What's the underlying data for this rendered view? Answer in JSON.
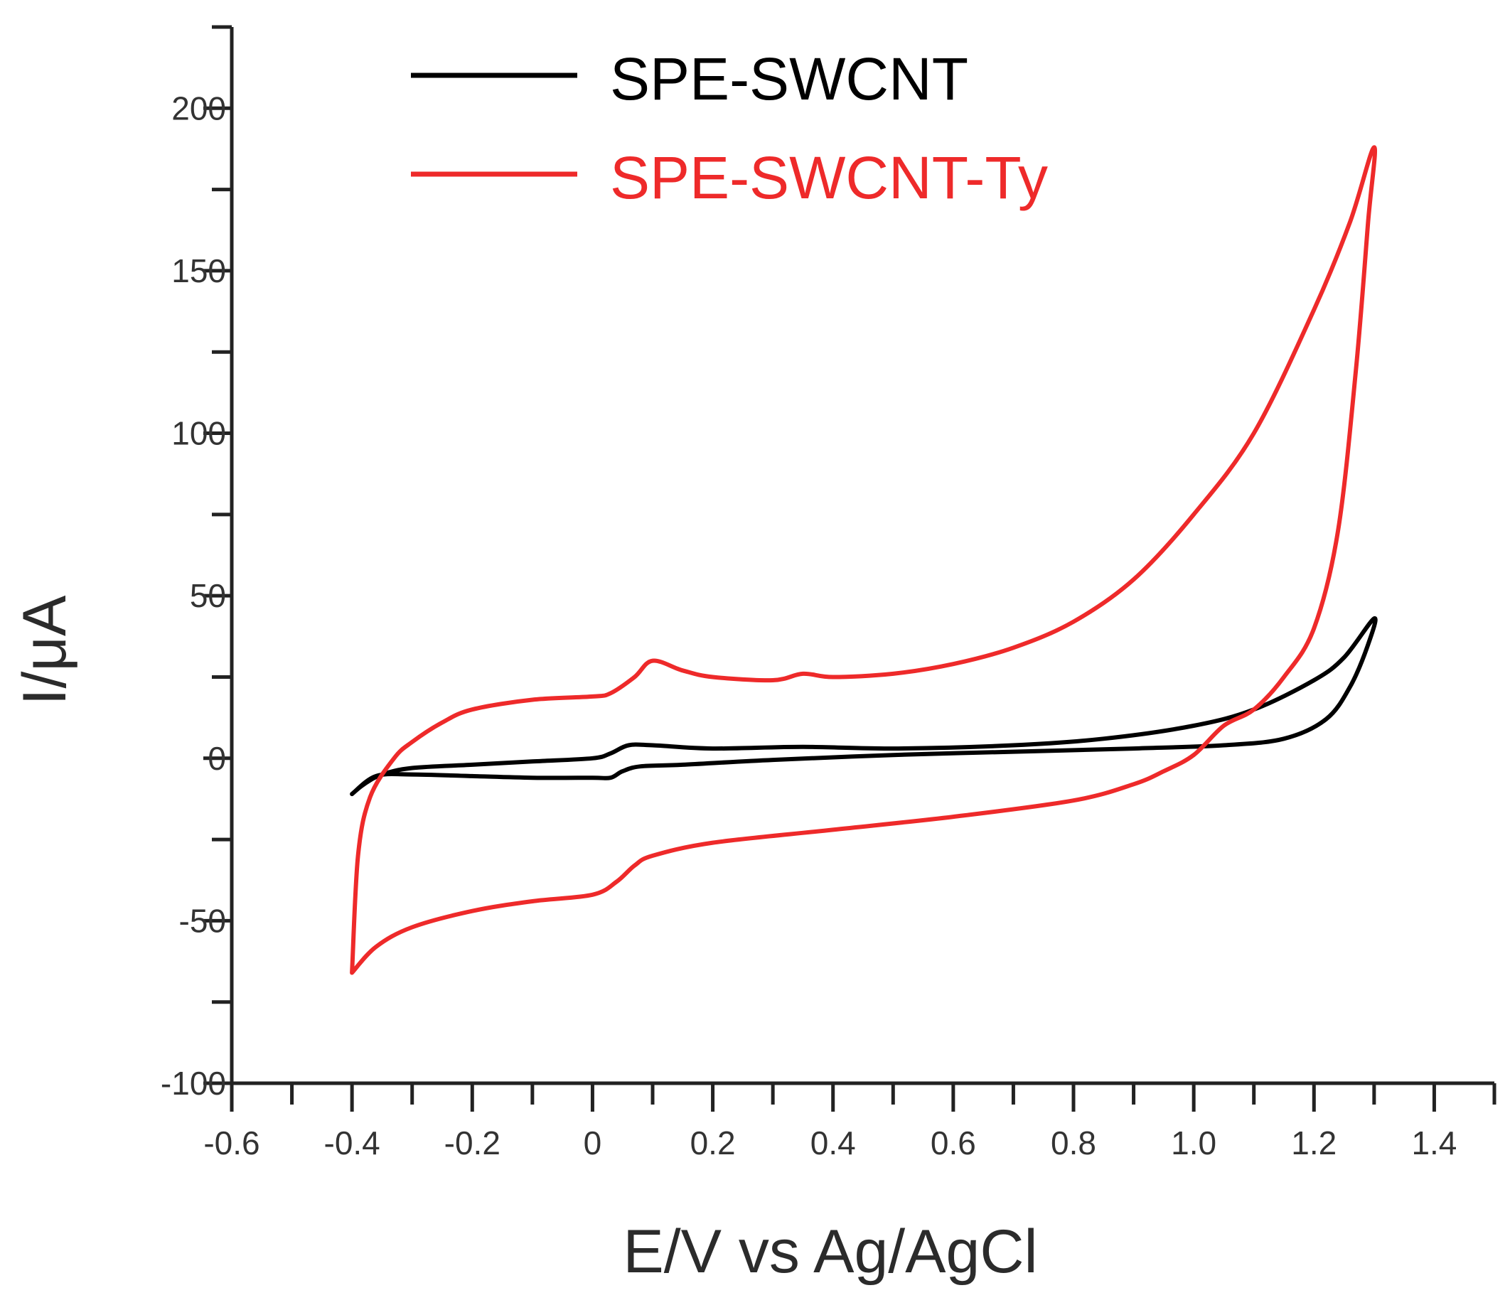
{
  "chart_data": {
    "type": "line",
    "title": "",
    "xlabel": "E/V vs Ag/AgCl",
    "ylabel": "I/μA",
    "xlim": [
      -0.6,
      1.5
    ],
    "ylim": [
      -100,
      225
    ],
    "x_ticks": [
      -0.6,
      -0.4,
      -0.2,
      0,
      0.2,
      0.4,
      0.6,
      0.8,
      1.0,
      1.2,
      1.4
    ],
    "x_tick_labels": [
      "-0.6",
      "-0.4",
      "-0.2",
      "0",
      "0.2",
      "0.4",
      "0.6",
      "0.8",
      "1.0",
      "1.2",
      "1.4"
    ],
    "x_minor_step": 0.1,
    "y_ticks": [
      -100,
      -50,
      0,
      50,
      100,
      150,
      200
    ],
    "y_tick_labels": [
      "-100",
      "-50",
      "0",
      "50",
      "100",
      "150",
      "200"
    ],
    "y_minor_step": 25,
    "grid": false,
    "legend_position": "top-center",
    "series": [
      {
        "name": "SPE-SWCNT",
        "color": "#000000",
        "points": [
          [
            -0.4,
            -11
          ],
          [
            -0.38,
            -8
          ],
          [
            -0.35,
            -5
          ],
          [
            -0.3,
            -3
          ],
          [
            -0.2,
            -2
          ],
          [
            -0.1,
            -1
          ],
          [
            0.0,
            0
          ],
          [
            0.03,
            1.5
          ],
          [
            0.06,
            4
          ],
          [
            0.1,
            4
          ],
          [
            0.2,
            3
          ],
          [
            0.35,
            3.5
          ],
          [
            0.5,
            3
          ],
          [
            0.7,
            4
          ],
          [
            0.85,
            6
          ],
          [
            1.0,
            10
          ],
          [
            1.1,
            15
          ],
          [
            1.2,
            24
          ],
          [
            1.25,
            31
          ],
          [
            1.3,
            43
          ],
          [
            1.29,
            35
          ],
          [
            1.26,
            22
          ],
          [
            1.22,
            12
          ],
          [
            1.15,
            6
          ],
          [
            1.05,
            4
          ],
          [
            0.9,
            3
          ],
          [
            0.7,
            2
          ],
          [
            0.5,
            1
          ],
          [
            0.3,
            -0.5
          ],
          [
            0.15,
            -2
          ],
          [
            0.08,
            -2.5
          ],
          [
            0.05,
            -4
          ],
          [
            0.03,
            -6
          ],
          [
            0.0,
            -6
          ],
          [
            -0.1,
            -6
          ],
          [
            -0.2,
            -5.5
          ],
          [
            -0.3,
            -5
          ],
          [
            -0.36,
            -5.5
          ],
          [
            -0.4,
            -11
          ]
        ]
      },
      {
        "name": "SPE-SWCNT-Ty",
        "color": "#ee2a2a",
        "points": [
          [
            -0.4,
            -66
          ],
          [
            -0.39,
            -30
          ],
          [
            -0.37,
            -12
          ],
          [
            -0.33,
            0
          ],
          [
            -0.3,
            5
          ],
          [
            -0.25,
            11
          ],
          [
            -0.2,
            15
          ],
          [
            -0.1,
            18
          ],
          [
            0.0,
            19
          ],
          [
            0.03,
            20
          ],
          [
            0.07,
            25
          ],
          [
            0.1,
            30
          ],
          [
            0.15,
            27
          ],
          [
            0.2,
            25
          ],
          [
            0.3,
            24
          ],
          [
            0.35,
            26
          ],
          [
            0.4,
            25
          ],
          [
            0.5,
            26
          ],
          [
            0.6,
            29
          ],
          [
            0.7,
            34
          ],
          [
            0.8,
            42
          ],
          [
            0.9,
            55
          ],
          [
            1.0,
            75
          ],
          [
            1.1,
            100
          ],
          [
            1.2,
            138
          ],
          [
            1.26,
            165
          ],
          [
            1.3,
            188
          ],
          [
            1.29,
            165
          ],
          [
            1.27,
            120
          ],
          [
            1.24,
            70
          ],
          [
            1.2,
            40
          ],
          [
            1.15,
            25
          ],
          [
            1.1,
            15
          ],
          [
            1.05,
            10
          ],
          [
            1.0,
            1
          ],
          [
            0.95,
            -4
          ],
          [
            0.9,
            -8
          ],
          [
            0.8,
            -13
          ],
          [
            0.6,
            -18
          ],
          [
            0.4,
            -22
          ],
          [
            0.2,
            -26
          ],
          [
            0.1,
            -30
          ],
          [
            0.07,
            -33
          ],
          [
            0.04,
            -38
          ],
          [
            0.0,
            -42
          ],
          [
            -0.1,
            -44
          ],
          [
            -0.2,
            -47
          ],
          [
            -0.3,
            -52
          ],
          [
            -0.36,
            -58
          ],
          [
            -0.4,
            -66
          ]
        ]
      }
    ]
  }
}
